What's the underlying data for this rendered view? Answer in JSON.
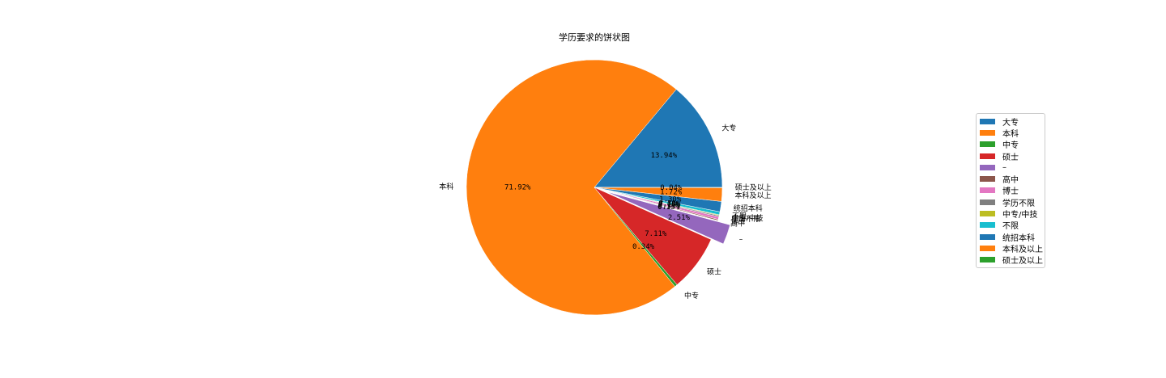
{
  "chart_data": {
    "type": "pie",
    "title": "学历要求的饼状图",
    "slices": [
      {
        "label": "大专",
        "value": 13.94,
        "pct_label": "13.94%",
        "color": "#1f77b4"
      },
      {
        "label": "本科",
        "value": 71.92,
        "pct_label": "71.92%",
        "color": "#ff7f0e"
      },
      {
        "label": "中专",
        "value": 0.34,
        "pct_label": "0.34%",
        "color": "#2ca02c"
      },
      {
        "label": "硕士",
        "value": 7.11,
        "pct_label": "7.11%",
        "color": "#d62728"
      },
      {
        "label": "–",
        "value": 2.51,
        "pct_label": "2.51%",
        "color": "#9467bd",
        "explode": true
      },
      {
        "label": "高中",
        "value": 0.15,
        "pct_label": "0.15%",
        "color": "#8c564b"
      },
      {
        "label": "博士",
        "value": 0.34,
        "pct_label": "0.34%",
        "color": "#e377c2"
      },
      {
        "label": "学历不限",
        "value": 0.15,
        "pct_label": "0.15%",
        "color": "#7f7f7f"
      },
      {
        "label": "中专/中技",
        "value": 0.1,
        "pct_label": "0.10%",
        "color": "#bcbd22"
      },
      {
        "label": "不限",
        "value": 0.39,
        "pct_label": "0.39%",
        "color": "#17becf"
      },
      {
        "label": "统招本科",
        "value": 1.3,
        "pct_label": "1.30%",
        "color": "#1f77b4"
      },
      {
        "label": "本科及以上",
        "value": 1.72,
        "pct_label": "1.72%",
        "color": "#ff7f0e"
      },
      {
        "label": "硕士及以上",
        "value": 0.04,
        "pct_label": "0.04%",
        "color": "#2ca02c"
      }
    ],
    "legend_position": "right"
  }
}
